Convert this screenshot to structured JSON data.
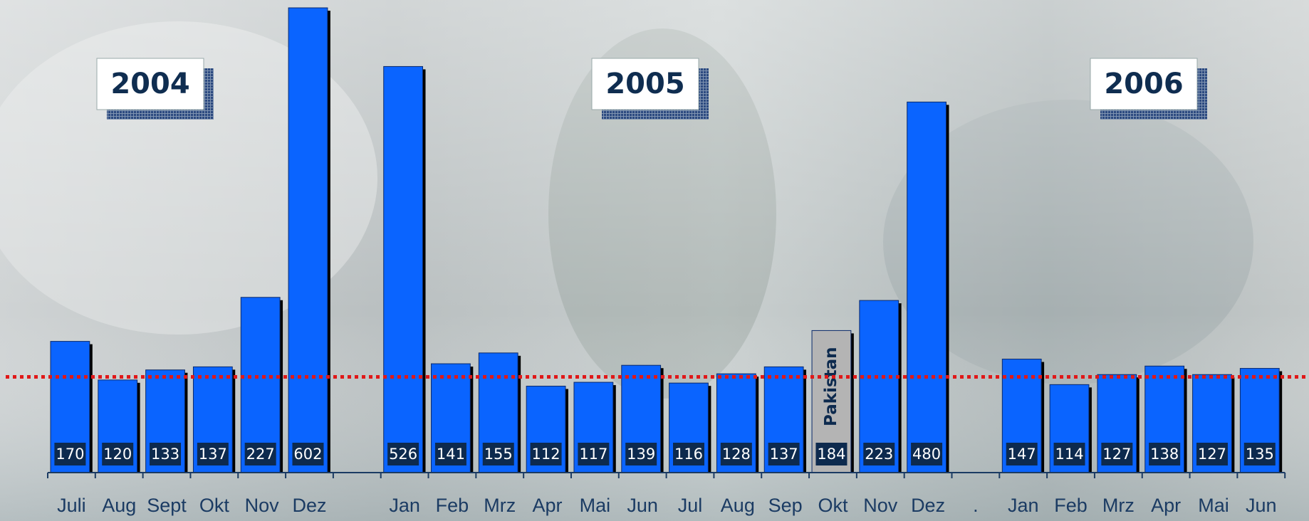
{
  "chart_data": {
    "type": "bar",
    "year_labels": [
      "2004",
      "2005",
      "2006"
    ],
    "categories": [
      "Juli",
      "Aug",
      "Sept",
      "Okt",
      "Nov",
      "Dez",
      null,
      "Jan",
      "Feb",
      "Mrz",
      "Apr",
      "Mai",
      "Jun",
      "Jul",
      "Aug",
      "Sep",
      "Okt",
      "Nov",
      "Dez",
      ".",
      "Jan",
      "Feb",
      "Mrz",
      "Apr",
      "Mai",
      "Jun"
    ],
    "values": [
      170,
      120,
      133,
      137,
      227,
      602,
      null,
      526,
      141,
      155,
      112,
      117,
      139,
      116,
      128,
      137,
      184,
      223,
      480,
      null,
      147,
      114,
      127,
      138,
      127,
      135
    ],
    "color": "#0a64ff",
    "annotation": {
      "text": "Pakistan",
      "index": 16,
      "color": "#b4b4b4"
    },
    "reference_line": {
      "value": 124,
      "color": "#e01818"
    }
  }
}
